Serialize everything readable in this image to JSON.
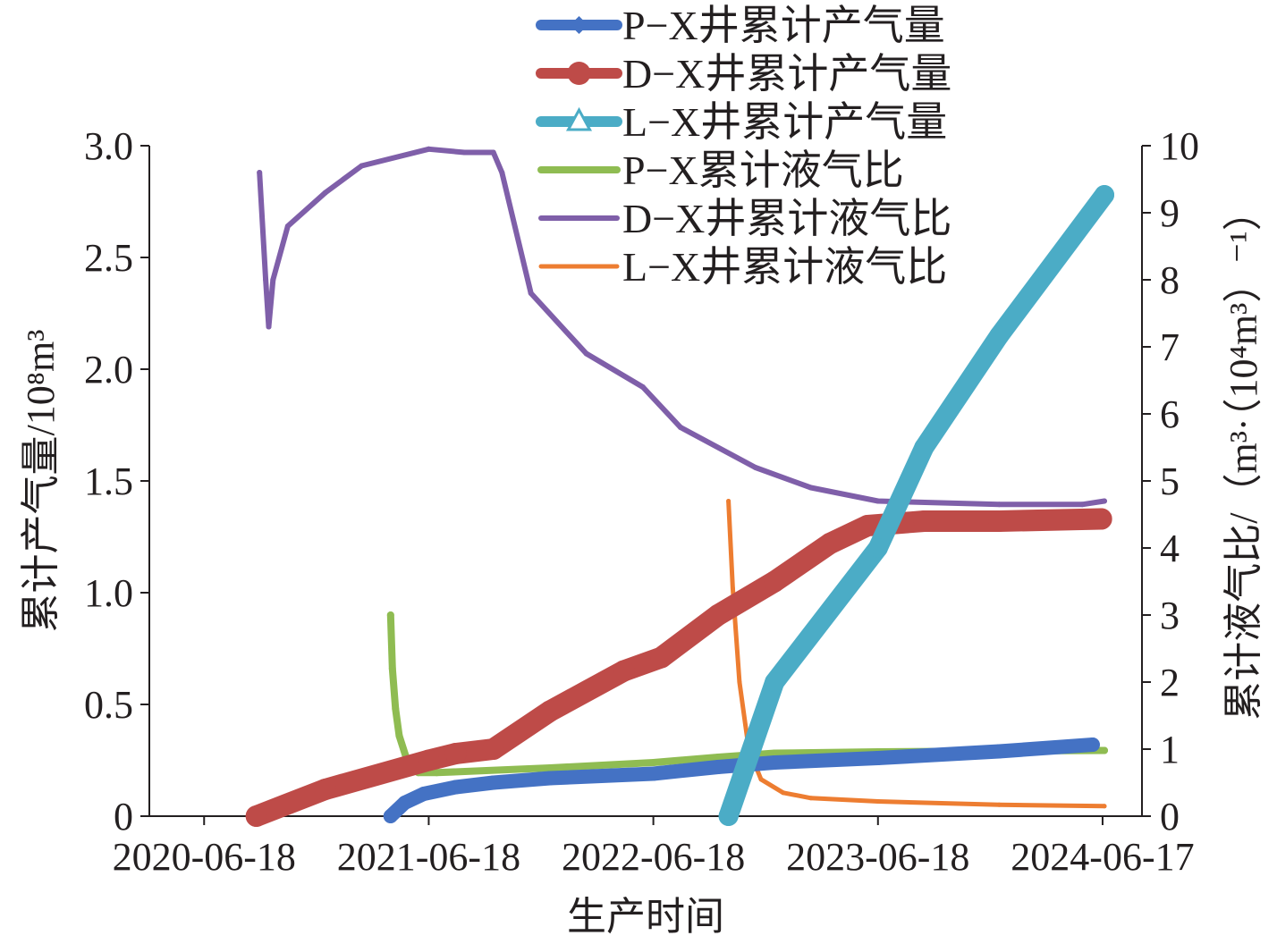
{
  "chart_data": {
    "type": "line",
    "xlabel": "生产时间",
    "ylabel_left": "累计产气量/10⁸m³",
    "ylabel_right": "累计液气比/（m³·（10⁴m³）⁻¹）",
    "x_tick_labels": [
      "2020-06-18",
      "2021-06-18",
      "2022-06-18",
      "2023-06-18",
      "2024-06-17"
    ],
    "x_ticks": [
      "2020-06-18",
      "2021-06-18",
      "2022-06-18",
      "2023-06-18",
      "2024-06-17"
    ],
    "ylim_left": [
      0,
      3
    ],
    "ylim_right": [
      0,
      10
    ],
    "y_left_tick_labels": [
      "0",
      "0.5",
      "1.0",
      "1.5",
      "2.0",
      "2.5",
      "3.0"
    ],
    "y_left_ticks": [
      0,
      0.5,
      1.0,
      1.5,
      2.0,
      2.5,
      3.0
    ],
    "y_right_tick_labels": [
      "0",
      "1",
      "2",
      "3",
      "4",
      "5",
      "6",
      "7",
      "8",
      "9",
      "10"
    ],
    "y_right_ticks": [
      0,
      1,
      2,
      3,
      4,
      5,
      6,
      7,
      8,
      9,
      10
    ],
    "grid": false,
    "legend_position": "top-right",
    "series": [
      {
        "name": "P−X井累计产气量",
        "axis": "left",
        "color": "#4472c4",
        "marker": "diamond",
        "width": 16,
        "x": [
          "2021-04-17",
          "2021-05-10",
          "2021-06-10",
          "2021-08-01",
          "2021-10-01",
          "2022-01-01",
          "2022-06-18",
          "2022-10-01",
          "2023-01-01",
          "2023-06-18",
          "2024-01-01",
          "2024-06-01"
        ],
        "y": [
          0.0,
          0.06,
          0.1,
          0.13,
          0.15,
          0.17,
          0.19,
          0.22,
          0.24,
          0.26,
          0.29,
          0.32
        ]
      },
      {
        "name": "D−X井累计产气量",
        "axis": "left",
        "color": "#be4b48",
        "marker": "circle",
        "width": 24,
        "x": [
          "2020-09-11",
          "2021-01-01",
          "2021-06-18",
          "2021-08-01",
          "2021-10-01",
          "2022-01-01",
          "2022-05-01",
          "2022-07-01",
          "2022-10-01",
          "2023-01-01",
          "2023-04-01",
          "2023-06-01",
          "2023-09-01",
          "2024-01-01",
          "2024-06-15"
        ],
        "y": [
          0.0,
          0.12,
          0.25,
          0.28,
          0.3,
          0.47,
          0.65,
          0.71,
          0.9,
          1.05,
          1.22,
          1.3,
          1.32,
          1.32,
          1.33
        ]
      },
      {
        "name": "L−X井累计产气量",
        "axis": "left",
        "color": "#4bacc6",
        "marker": "triangle",
        "width": 22,
        "x": [
          "2022-10-18",
          "2023-01-01",
          "2023-06-18",
          "2023-09-01",
          "2024-01-01",
          "2024-06-20"
        ],
        "y": [
          0.0,
          0.6,
          1.2,
          1.65,
          2.15,
          2.78
        ]
      },
      {
        "name": "P−X累计液气比",
        "axis": "right",
        "color": "#8fbc52",
        "marker": "none",
        "width": 8,
        "x": [
          "2021-04-17",
          "2021-04-20",
          "2021-04-25",
          "2021-05-01",
          "2021-05-15",
          "2021-06-01",
          "2021-07-01",
          "2022-01-01",
          "2022-06-18",
          "2022-10-01",
          "2023-01-01",
          "2023-06-18",
          "2024-06-20"
        ],
        "y": [
          3.0,
          2.2,
          1.6,
          1.2,
          0.8,
          0.65,
          0.65,
          0.72,
          0.8,
          0.88,
          0.94,
          0.96,
          0.98
        ]
      },
      {
        "name": "D−X井累计液气比",
        "axis": "right",
        "color": "#7f5fa9",
        "marker": "none",
        "width": 6,
        "x": [
          "2020-09-16",
          "2020-09-26",
          "2020-10-01",
          "2020-10-08",
          "2020-11-01",
          "2021-01-01",
          "2021-03-01",
          "2021-06-18",
          "2021-08-15",
          "2021-10-01",
          "2021-10-15",
          "2021-12-01",
          "2022-03-01",
          "2022-06-01",
          "2022-08-01",
          "2022-12-01",
          "2023-03-01",
          "2023-06-18",
          "2024-01-01",
          "2024-05-15",
          "2024-06-20"
        ],
        "y": [
          9.6,
          8.0,
          7.3,
          8.0,
          8.8,
          9.3,
          9.7,
          9.95,
          9.9,
          9.9,
          9.6,
          7.8,
          6.9,
          6.4,
          5.8,
          5.2,
          4.9,
          4.7,
          4.65,
          4.65,
          4.7
        ]
      },
      {
        "name": "L−X井累计液气比",
        "axis": "right",
        "color": "#ed7d31",
        "marker": "none",
        "width": 5,
        "x": [
          "2022-10-18",
          "2022-10-25",
          "2022-11-05",
          "2022-11-20",
          "2022-12-10",
          "2023-01-15",
          "2023-03-01",
          "2023-06-18",
          "2024-01-01",
          "2024-06-20"
        ],
        "y": [
          4.7,
          3.4,
          2.0,
          1.0,
          0.55,
          0.35,
          0.27,
          0.22,
          0.17,
          0.15
        ]
      }
    ]
  }
}
